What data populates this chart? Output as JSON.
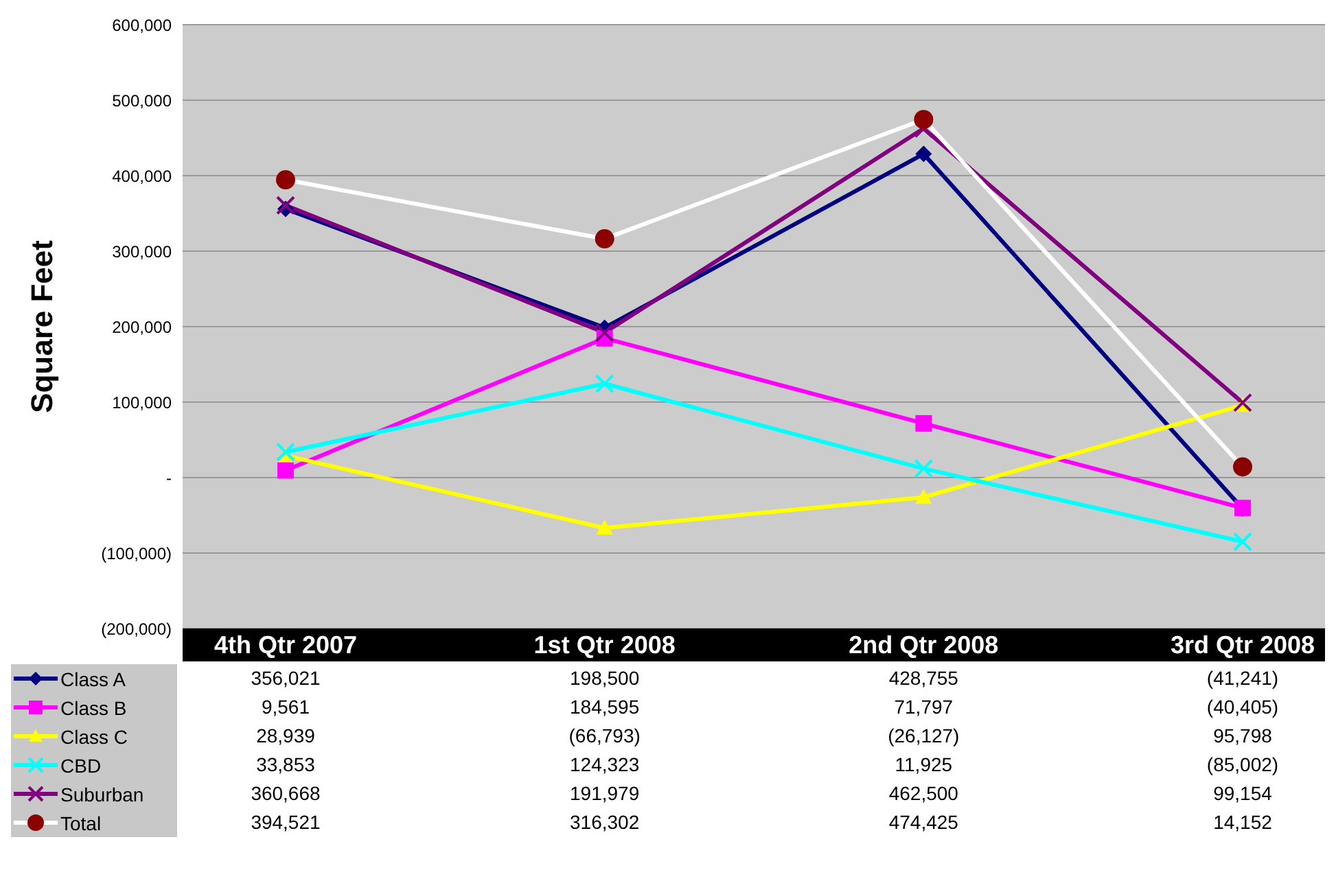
{
  "chart_data": {
    "type": "line",
    "ylabel": "Square Feet",
    "categories": [
      "4th Qtr 2007",
      "1st Qtr 2008",
      "2nd Qtr 2008",
      "3rd Qtr 2008"
    ],
    "ylim": [
      -200000,
      600000
    ],
    "yticks": [
      {
        "value": -200000,
        "label": "(200,000)"
      },
      {
        "value": -100000,
        "label": "(100,000)"
      },
      {
        "value": 0,
        "label": "-"
      },
      {
        "value": 100000,
        "label": "100,000"
      },
      {
        "value": 200000,
        "label": "200,000"
      },
      {
        "value": 300000,
        "label": "300,000"
      },
      {
        "value": 400000,
        "label": "400,000"
      },
      {
        "value": 500000,
        "label": "500,000"
      },
      {
        "value": 600000,
        "label": "600,000"
      }
    ],
    "grid": "y",
    "legend": "bottom",
    "series": [
      {
        "name": "Class A",
        "color": "#000080",
        "marker": "diamond",
        "values": [
          356021,
          198500,
          428755,
          -41241
        ],
        "value_labels": [
          "356,021",
          "198,500",
          "428,755",
          "(41,241)"
        ]
      },
      {
        "name": "Class B",
        "color": "#ff00ff",
        "marker": "square",
        "values": [
          9561,
          184595,
          71797,
          -40405
        ],
        "value_labels": [
          "9,561",
          "184,595",
          "71,797",
          "(40,405)"
        ]
      },
      {
        "name": "Class C",
        "color": "#ffff00",
        "marker": "triangle",
        "values": [
          28939,
          -66793,
          -26127,
          95798
        ],
        "value_labels": [
          "28,939",
          "(66,793)",
          "(26,127)",
          "95,798"
        ]
      },
      {
        "name": "CBD",
        "color": "#00ffff",
        "marker": "cross",
        "values": [
          33853,
          124323,
          11925,
          -85002
        ],
        "value_labels": [
          "33,853",
          "124,323",
          "11,925",
          "(85,002)"
        ]
      },
      {
        "name": "Suburban",
        "color": "#800080",
        "marker": "cross",
        "values": [
          360668,
          191979,
          462500,
          99154
        ],
        "value_labels": [
          "360,668",
          "191,979",
          "462,500",
          "99,154"
        ]
      },
      {
        "name": "Total",
        "color": "#ffffff",
        "colors": [
          "#8b0000",
          "#8b0000",
          "#8b0000",
          "#8b0000"
        ],
        "marker": "circle",
        "values": [
          394521,
          316302,
          474425,
          14152
        ],
        "value_labels": [
          "394,521",
          "316,302",
          "474,425",
          "14,152"
        ]
      }
    ]
  }
}
